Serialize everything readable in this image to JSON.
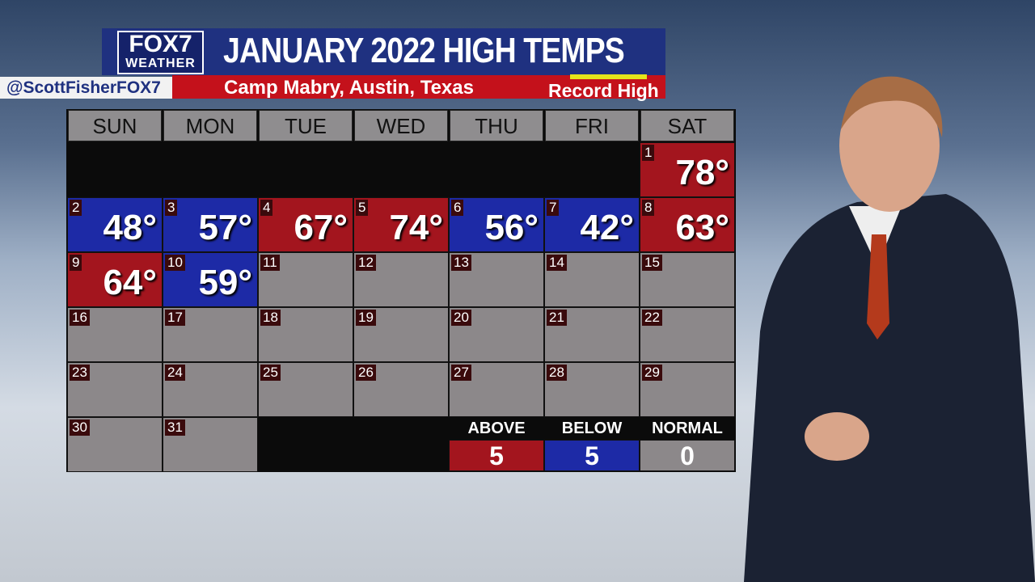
{
  "header": {
    "logo": "FOX7",
    "logo_sub": "WEATHER",
    "title": "JANUARY 2022 HIGH TEMPS",
    "subtitle": "Camp Mabry, Austin, Texas",
    "legend": "Record High",
    "handle": "@ScottFisherFOX7"
  },
  "calendar": {
    "weekdays": [
      "SUN",
      "MON",
      "TUE",
      "WED",
      "THU",
      "FRI",
      "SAT"
    ],
    "days": [
      {
        "day": "1",
        "temp": "78°",
        "color": "#a3151e"
      },
      {
        "day": "2",
        "temp": "48°",
        "color": "#1d2aa6"
      },
      {
        "day": "3",
        "temp": "57°",
        "color": "#1d2aa6"
      },
      {
        "day": "4",
        "temp": "67°",
        "color": "#a3151e"
      },
      {
        "day": "5",
        "temp": "74°",
        "color": "#a3151e"
      },
      {
        "day": "6",
        "temp": "56°",
        "color": "#1d2aa6"
      },
      {
        "day": "7",
        "temp": "42°",
        "color": "#1d2aa6"
      },
      {
        "day": "8",
        "temp": "63°",
        "color": "#a3151e"
      },
      {
        "day": "9",
        "temp": "64°",
        "color": "#a3151e"
      },
      {
        "day": "10",
        "temp": "59°",
        "color": "#1d2aa6"
      },
      {
        "day": "11"
      },
      {
        "day": "12"
      },
      {
        "day": "13"
      },
      {
        "day": "14"
      },
      {
        "day": "15"
      },
      {
        "day": "16"
      },
      {
        "day": "17"
      },
      {
        "day": "18"
      },
      {
        "day": "19"
      },
      {
        "day": "20"
      },
      {
        "day": "21"
      },
      {
        "day": "22"
      },
      {
        "day": "23"
      },
      {
        "day": "24"
      },
      {
        "day": "25"
      },
      {
        "day": "26"
      },
      {
        "day": "27"
      },
      {
        "day": "28"
      },
      {
        "day": "29"
      },
      {
        "day": "30"
      },
      {
        "day": "31"
      }
    ],
    "empty_color": "#8c888a"
  },
  "summary": [
    {
      "label": "ABOVE",
      "value": "5",
      "color": "#a3151e"
    },
    {
      "label": "BELOW",
      "value": "5",
      "color": "#1d2aa6"
    },
    {
      "label": "NORMAL",
      "value": "0",
      "color": "#8c888a"
    }
  ]
}
